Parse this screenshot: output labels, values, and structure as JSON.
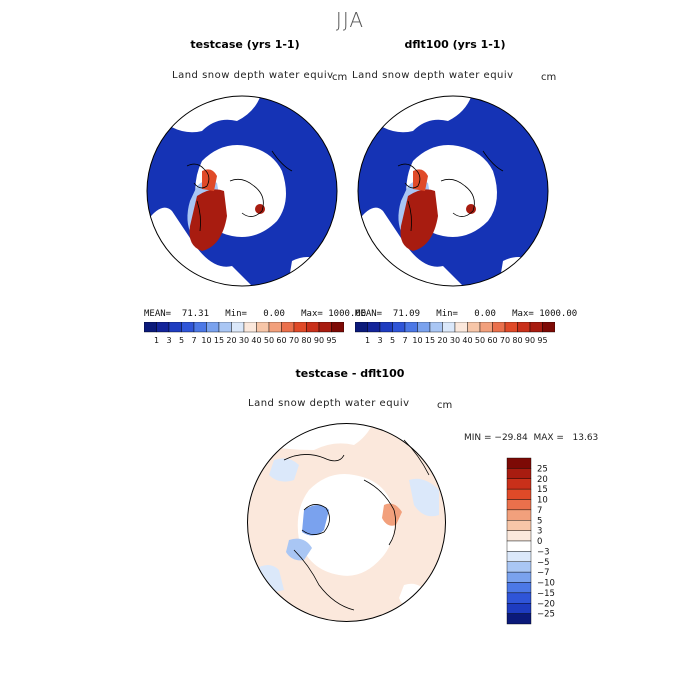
{
  "season": "JJA",
  "panels": [
    {
      "title": "testcase (yrs 1-1)",
      "variable": "Land snow depth water equiv",
      "units": "cm",
      "stats": "MEAN=  71.31   Min=   0.00   Max= 1000.00"
    },
    {
      "title": "dflt100 (yrs 1-1)",
      "variable": "Land snow depth water equiv",
      "units": "cm",
      "stats": "MEAN=  71.09   Min=   0.00   Max= 1000.00"
    }
  ],
  "diff": {
    "title": "testcase - dflt100",
    "variable": "Land snow depth water equiv",
    "units": "cm",
    "minmax": "MIN = −29.84  MAX =   13.63"
  },
  "chart_data": [
    {
      "type": "heatmap",
      "title": "testcase (yrs 1-1)",
      "projection": "north polar stereographic",
      "variable": "Land snow depth water equiv",
      "units": "cm",
      "mean": 71.31,
      "min": 0.0,
      "max": 1000.0,
      "colorbar_levels": [
        1,
        3,
        5,
        7,
        10,
        15,
        20,
        30,
        40,
        50,
        60,
        70,
        80,
        90,
        95
      ],
      "colorbar_labels": [
        "1",
        "3",
        "5",
        "7",
        "10",
        "15",
        "20",
        "30",
        "40",
        "50",
        "60",
        "70",
        "80",
        "90",
        "95"
      ],
      "colorbar_colors": [
        "#0b1a7a",
        "#13249a",
        "#1e3cc0",
        "#2f55d8",
        "#4c78e6",
        "#7aa2ee",
        "#a9c6f4",
        "#dbe8fa",
        "#fbe8dc",
        "#f7c6a8",
        "#f2a07c",
        "#ea704c",
        "#e04a28",
        "#c9301a",
        "#a81c10",
        "#7d0a05"
      ]
    },
    {
      "type": "heatmap",
      "title": "dflt100 (yrs 1-1)",
      "projection": "north polar stereographic",
      "variable": "Land snow depth water equiv",
      "units": "cm",
      "mean": 71.09,
      "min": 0.0,
      "max": 1000.0,
      "colorbar_levels": [
        1,
        3,
        5,
        7,
        10,
        15,
        20,
        30,
        40,
        50,
        60,
        70,
        80,
        90,
        95
      ],
      "colorbar_labels": [
        "1",
        "3",
        "5",
        "7",
        "10",
        "15",
        "20",
        "30",
        "40",
        "50",
        "60",
        "70",
        "80",
        "90",
        "95"
      ],
      "colorbar_colors": [
        "#0b1a7a",
        "#13249a",
        "#1e3cc0",
        "#2f55d8",
        "#4c78e6",
        "#7aa2ee",
        "#a9c6f4",
        "#dbe8fa",
        "#fbe8dc",
        "#f7c6a8",
        "#f2a07c",
        "#ea704c",
        "#e04a28",
        "#c9301a",
        "#a81c10",
        "#7d0a05"
      ]
    },
    {
      "type": "heatmap",
      "title": "testcase - dflt100",
      "projection": "north polar stereographic",
      "variable": "Land snow depth water equiv",
      "units": "cm",
      "min": -29.84,
      "max": 13.63,
      "colorbar_levels": [
        25,
        20,
        15,
        10,
        7,
        5,
        3,
        0,
        -3,
        -5,
        -7,
        -10,
        -15,
        -20,
        -25
      ],
      "colorbar_labels": [
        "25",
        "20",
        "15",
        "10",
        "7",
        "5",
        "3",
        "0",
        "−3",
        "−5",
        "−7",
        "−10",
        "−15",
        "−20",
        "−25"
      ],
      "colorbar_colors": [
        "#7d0a05",
        "#a81c10",
        "#c9301a",
        "#e04a28",
        "#ea704c",
        "#f2a07c",
        "#f7c6a8",
        "#fbe8dc",
        "#ffffff",
        "#dbe8fa",
        "#a9c6f4",
        "#7aa2ee",
        "#4c78e6",
        "#2f55d8",
        "#1e3cc0",
        "#0b1a7a"
      ]
    }
  ]
}
